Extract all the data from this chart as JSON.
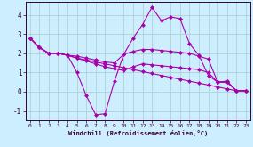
{
  "xlabel": "Windchill (Refroidissement éolien,°C)",
  "background_color": "#cceeff",
  "grid_color": "#aacccc",
  "line_color": "#aa00aa",
  "marker": "D",
  "markersize": 2.0,
  "linewidth": 0.8,
  "xlim": [
    -0.5,
    23.5
  ],
  "ylim": [
    -1.5,
    4.7
  ],
  "xticks": [
    0,
    1,
    2,
    3,
    4,
    5,
    6,
    7,
    8,
    9,
    10,
    11,
    12,
    13,
    14,
    15,
    16,
    17,
    18,
    19,
    20,
    21,
    22,
    23
  ],
  "yticks": [
    -1,
    0,
    1,
    2,
    3,
    4
  ],
  "series": [
    [
      2.8,
      2.3,
      2.0,
      2.0,
      1.9,
      1.0,
      -0.2,
      -1.2,
      -1.15,
      0.55,
      1.95,
      2.8,
      3.5,
      4.4,
      3.7,
      3.9,
      3.8,
      2.5,
      1.9,
      0.85,
      0.5,
      0.55,
      0.05,
      0.05
    ],
    [
      2.8,
      2.3,
      2.0,
      2.0,
      1.9,
      1.85,
      1.75,
      1.65,
      1.55,
      1.5,
      1.95,
      2.1,
      2.2,
      2.2,
      2.15,
      2.1,
      2.05,
      2.0,
      1.85,
      1.7,
      0.5,
      0.5,
      0.05,
      0.05
    ],
    [
      2.8,
      2.3,
      2.0,
      2.0,
      1.9,
      1.75,
      1.6,
      1.45,
      1.3,
      1.2,
      1.1,
      1.3,
      1.45,
      1.4,
      1.35,
      1.3,
      1.25,
      1.2,
      1.15,
      1.0,
      0.5,
      0.5,
      0.05,
      0.05
    ],
    [
      2.8,
      2.3,
      2.0,
      2.0,
      1.9,
      1.75,
      1.65,
      1.55,
      1.45,
      1.35,
      1.25,
      1.15,
      1.05,
      0.95,
      0.85,
      0.75,
      0.65,
      0.55,
      0.45,
      0.35,
      0.25,
      0.15,
      0.05,
      0.05
    ]
  ]
}
